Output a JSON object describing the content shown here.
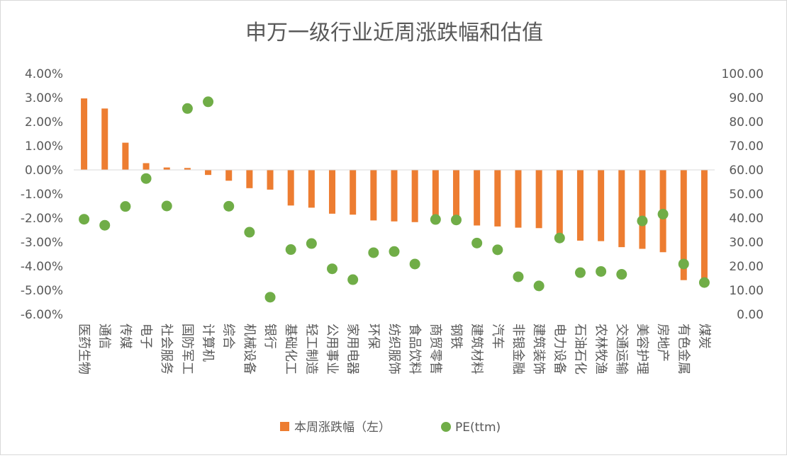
{
  "colors": {
    "bar": "#ED7D31",
    "point": "#70AD47",
    "axis": "#D9D9D9",
    "text": "#595959"
  },
  "chart_data": {
    "type": "bar",
    "title": "申万一级行业近周涨跌幅和估值",
    "categories": [
      "医药生物",
      "通信",
      "传媒",
      "电子",
      "社会服务",
      "国防军工",
      "计算机",
      "综合",
      "机械设备",
      "银行",
      "基础化工",
      "轻工制造",
      "公用事业",
      "家用电器",
      "环保",
      "纺织服饰",
      "食品饮料",
      "商贸零售",
      "钢铁",
      "建筑材料",
      "汽车",
      "非银金融",
      "建筑装饰",
      "电力设备",
      "石油石化",
      "农林牧渔",
      "交通运输",
      "美容护理",
      "房地产",
      "有色金属",
      "煤炭"
    ],
    "series": [
      {
        "name": "本周涨跌幅（左）",
        "type": "bar",
        "axis": "left",
        "values": [
          2.97,
          2.55,
          1.13,
          0.28,
          0.1,
          0.08,
          -0.21,
          -0.45,
          -0.76,
          -0.82,
          -1.48,
          -1.57,
          -1.82,
          -1.86,
          -2.1,
          -2.14,
          -2.17,
          -2.19,
          -2.21,
          -2.31,
          -2.35,
          -2.4,
          -2.42,
          -2.68,
          -2.94,
          -2.96,
          -3.21,
          -3.28,
          -3.42,
          -4.58,
          -4.72
        ]
      },
      {
        "name": "PE(ttm)",
        "type": "scatter",
        "axis": "right",
        "values": [
          39.5,
          37.0,
          44.8,
          56.4,
          45.0,
          85.5,
          88.3,
          44.9,
          34.1,
          7.1,
          26.9,
          29.4,
          18.9,
          14.4,
          25.6,
          26.1,
          20.9,
          39.4,
          39.2,
          29.6,
          26.8,
          15.6,
          11.8,
          31.7,
          17.3,
          17.8,
          16.6,
          38.8,
          41.6,
          20.9,
          13.2
        ]
      }
    ],
    "left_axis": {
      "ylim": [
        -6,
        4
      ],
      "ticks": [
        "4.00%",
        "3.00%",
        "2.00%",
        "1.00%",
        "0.00%",
        "-1.00%",
        "-2.00%",
        "-3.00%",
        "-4.00%",
        "-5.00%",
        "-6.00%"
      ]
    },
    "right_axis": {
      "ylim": [
        0,
        100
      ],
      "ticks": [
        "100.00",
        "90.00",
        "80.00",
        "70.00",
        "60.00",
        "50.00",
        "40.00",
        "30.00",
        "20.00",
        "10.00",
        "0.00"
      ]
    },
    "legend": {
      "position": "bottom",
      "items": [
        {
          "label": "本周涨跌幅（左）",
          "marker": "square"
        },
        {
          "label": "PE(ttm)",
          "marker": "circle"
        }
      ]
    },
    "grid": false
  }
}
